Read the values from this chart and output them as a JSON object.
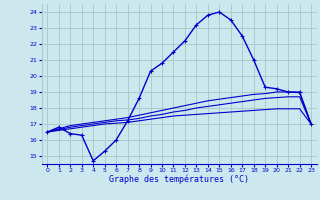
{
  "xlabel": "Graphe des températures (°C)",
  "background_color": "#cce8ee",
  "grid_color": "#aacccc",
  "line_color": "#0000cc",
  "xlim": [
    -0.5,
    23.5
  ],
  "ylim": [
    14.5,
    24.5
  ],
  "yticks": [
    15,
    16,
    17,
    18,
    19,
    20,
    21,
    22,
    23,
    24
  ],
  "xticks": [
    0,
    1,
    2,
    3,
    4,
    5,
    6,
    7,
    8,
    9,
    10,
    11,
    12,
    13,
    14,
    15,
    16,
    17,
    18,
    19,
    20,
    21,
    22,
    23
  ],
  "line1_x": [
    0,
    1,
    2,
    3,
    4,
    5,
    6,
    7,
    8,
    9,
    10,
    11,
    12,
    13,
    14,
    15,
    16,
    17,
    18,
    19,
    20,
    21,
    22,
    23
  ],
  "line1_y": [
    16.5,
    16.8,
    16.4,
    16.3,
    14.7,
    15.3,
    16.0,
    17.2,
    18.6,
    20.3,
    20.8,
    21.5,
    22.2,
    23.2,
    23.8,
    24.0,
    23.5,
    22.5,
    21.0,
    19.3,
    19.2,
    19.0,
    19.0,
    17.0
  ],
  "line2_x": [
    0,
    1,
    2,
    3,
    4,
    5,
    6,
    7,
    8,
    9,
    10,
    11,
    12,
    13,
    14,
    15,
    16,
    17,
    18,
    19,
    20,
    21,
    22,
    23
  ],
  "line2_y": [
    16.5,
    16.6,
    16.7,
    16.8,
    16.9,
    17.0,
    17.05,
    17.1,
    17.2,
    17.3,
    17.4,
    17.5,
    17.55,
    17.6,
    17.65,
    17.7,
    17.75,
    17.8,
    17.85,
    17.9,
    17.95,
    17.95,
    17.95,
    17.0
  ],
  "line3_x": [
    0,
    1,
    2,
    3,
    4,
    5,
    6,
    7,
    8,
    9,
    10,
    11,
    12,
    13,
    14,
    15,
    16,
    17,
    18,
    19,
    20,
    21,
    22,
    23
  ],
  "line3_y": [
    16.5,
    16.7,
    16.9,
    17.0,
    17.1,
    17.2,
    17.3,
    17.4,
    17.55,
    17.7,
    17.85,
    18.0,
    18.15,
    18.3,
    18.45,
    18.55,
    18.65,
    18.75,
    18.85,
    18.9,
    19.0,
    19.0,
    18.95,
    17.0
  ],
  "line4_x": [
    0,
    1,
    2,
    3,
    4,
    5,
    6,
    7,
    8,
    9,
    10,
    11,
    12,
    13,
    14,
    15,
    16,
    17,
    18,
    19,
    20,
    21,
    22,
    23
  ],
  "line4_y": [
    16.5,
    16.65,
    16.8,
    16.9,
    17.0,
    17.1,
    17.2,
    17.25,
    17.35,
    17.5,
    17.6,
    17.75,
    17.85,
    18.0,
    18.1,
    18.2,
    18.3,
    18.4,
    18.5,
    18.6,
    18.65,
    18.7,
    18.7,
    17.0
  ]
}
